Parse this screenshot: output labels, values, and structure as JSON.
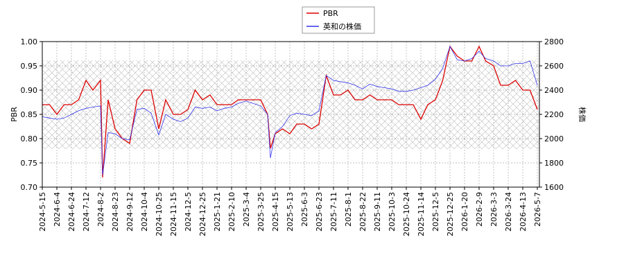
{
  "chart_data": {
    "type": "line",
    "ylabel": "PBR",
    "y2label": "株価",
    "ylim": [
      0.7,
      1.0
    ],
    "yticks": [
      {
        "value": 0.7,
        "label": "0.70"
      },
      {
        "value": 0.75,
        "label": "0.75"
      },
      {
        "value": 0.8,
        "label": "0.80"
      },
      {
        "value": 0.85,
        "label": "0.85"
      },
      {
        "value": 0.9,
        "label": "0.90"
      },
      {
        "value": 0.95,
        "label": "0.95"
      },
      {
        "value": 1.0,
        "label": "1.00"
      }
    ],
    "y2lim": [
      1600,
      2800
    ],
    "y2ticks": [
      1600,
      1800,
      2000,
      2200,
      2400,
      2600,
      2800
    ],
    "xticks": [
      "2024-5-15",
      "2024-6-4",
      "2024-6-24",
      "2024-7-12",
      "2024-8-2",
      "2024-8-23",
      "2024-9-12",
      "2024-10-4",
      "2024-10-25",
      "2024-11-15",
      "2024-12-5",
      "2024-12-25",
      "2025-1-21",
      "2025-2-10",
      "2025-3-4",
      "2025-3-25",
      "2025-4-15",
      "2025-5-13",
      "2025-6-3",
      "2025-6-23",
      "2025-7-11",
      "2025-8-1",
      "2025-8-22",
      "2025-9-11",
      "2025-10-3",
      "2025-10-24",
      "2025-11-14",
      "2025-12-5",
      "2025-12-25",
      "2026-1-20",
      "2026-2-9",
      "2026-3-3",
      "2026-3-24",
      "2026-4-13",
      "2026-5-7"
    ],
    "grid": true,
    "x": [
      "2024-5-15",
      "2024-5-25",
      "2024-6-4",
      "2024-6-14",
      "2024-6-24",
      "2024-7-3",
      "2024-7-12",
      "2024-7-22",
      "2024-8-2",
      "2024-8-5",
      "2024-8-13",
      "2024-8-23",
      "2024-9-2",
      "2024-9-12",
      "2024-9-23",
      "2024-10-4",
      "2024-10-14",
      "2024-10-25",
      "2024-11-4",
      "2024-11-15",
      "2024-11-25",
      "2024-12-5",
      "2024-12-15",
      "2024-12-25",
      "2025-1-8",
      "2025-1-21",
      "2025-1-31",
      "2025-2-10",
      "2025-2-20",
      "2025-3-4",
      "2025-3-14",
      "2025-3-25",
      "2025-4-4",
      "2025-4-8",
      "2025-4-15",
      "2025-4-29",
      "2025-5-13",
      "2025-5-23",
      "2025-6-3",
      "2025-6-13",
      "2025-6-23",
      "2025-7-2",
      "2025-7-11",
      "2025-7-21",
      "2025-8-1",
      "2025-8-11",
      "2025-8-22",
      "2025-9-1",
      "2025-9-11",
      "2025-9-22",
      "2025-10-3",
      "2025-10-13",
      "2025-10-24",
      "2025-11-3",
      "2025-11-14",
      "2025-11-24",
      "2025-12-5",
      "2025-12-15",
      "2025-12-25",
      "2026-1-7",
      "2026-1-20",
      "2026-1-30",
      "2026-2-9",
      "2026-2-19",
      "2026-3-3",
      "2026-3-13",
      "2026-3-24",
      "2026-4-3",
      "2026-4-13",
      "2026-4-25",
      "2026-5-7"
    ],
    "series": [
      {
        "name": "PBR",
        "color": "#dd0000",
        "values": [
          0.87,
          0.87,
          0.85,
          0.87,
          0.87,
          0.88,
          0.92,
          0.9,
          0.92,
          0.72,
          0.88,
          0.82,
          0.8,
          0.79,
          0.88,
          0.9,
          0.9,
          0.82,
          0.88,
          0.85,
          0.85,
          0.86,
          0.9,
          0.88,
          0.89,
          0.87,
          0.87,
          0.87,
          0.88,
          0.88,
          0.88,
          0.88,
          0.85,
          0.78,
          0.81,
          0.82,
          0.81,
          0.83,
          0.83,
          0.82,
          0.83,
          0.93,
          0.89,
          0.89,
          0.9,
          0.88,
          0.88,
          0.89,
          0.88,
          0.88,
          0.88,
          0.87,
          0.87,
          0.87,
          0.84,
          0.87,
          0.88,
          0.92,
          0.99,
          0.97,
          0.96,
          0.96,
          0.99,
          0.96,
          0.95,
          0.91,
          0.91,
          0.92,
          0.9,
          0.9,
          0.86
        ]
      },
      {
        "name": "英和の株価",
        "color": "#3333ee",
        "axis": "y2",
        "values": [
          2180,
          2170,
          2160,
          2170,
          2200,
          2230,
          2250,
          2260,
          2270,
          1700,
          2050,
          2040,
          2000,
          1990,
          2240,
          2250,
          2210,
          2030,
          2200,
          2160,
          2140,
          2170,
          2260,
          2250,
          2260,
          2230,
          2250,
          2260,
          2290,
          2310,
          2290,
          2270,
          2200,
          1840,
          2050,
          2100,
          2190,
          2210,
          2200,
          2190,
          2230,
          2520,
          2480,
          2470,
          2460,
          2440,
          2410,
          2450,
          2430,
          2420,
          2410,
          2390,
          2390,
          2400,
          2420,
          2440,
          2490,
          2580,
          2760,
          2650,
          2640,
          2660,
          2720,
          2660,
          2640,
          2600,
          2600,
          2620,
          2620,
          2640,
          2440
        ]
      }
    ]
  }
}
